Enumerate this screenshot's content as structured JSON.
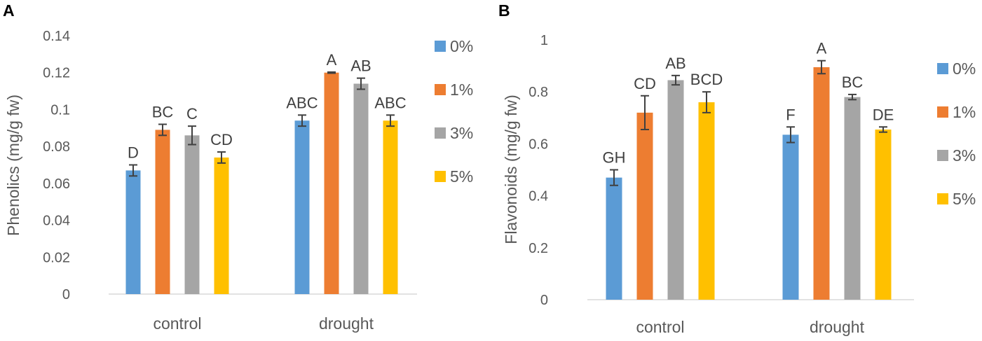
{
  "chart_data": [
    {
      "panel": "A",
      "type": "bar",
      "ylabel": "Phenolics (mg/g fw)",
      "xlabel": "",
      "categories": [
        "control",
        "drought"
      ],
      "ylim": [
        0,
        0.14
      ],
      "yticks": [
        "0",
        "0.02",
        "0.04",
        "0.06",
        "0.08",
        "0.1",
        "0.12",
        "0.14"
      ],
      "grid": false,
      "legend_position": "right",
      "series": [
        {
          "name": "0%",
          "color": "#5B9BD5",
          "values": [
            0.067,
            0.094
          ],
          "errors": [
            0.003,
            0.003
          ],
          "letters": [
            "D",
            "ABC"
          ]
        },
        {
          "name": "1%",
          "color": "#ED7D31",
          "values": [
            0.089,
            0.12
          ],
          "errors": [
            0.003,
            0.0003
          ],
          "letters": [
            "BC",
            "A"
          ]
        },
        {
          "name": "3%",
          "color": "#A5A5A5",
          "values": [
            0.086,
            0.114
          ],
          "errors": [
            0.005,
            0.003
          ],
          "letters": [
            "C",
            "AB"
          ]
        },
        {
          "name": "5%",
          "color": "#FFC000",
          "values": [
            0.074,
            0.094
          ],
          "errors": [
            0.003,
            0.003
          ],
          "letters": [
            "CD",
            "ABC"
          ]
        }
      ]
    },
    {
      "panel": "B",
      "type": "bar",
      "ylabel": "Flavonoids (mg/g fw)",
      "xlabel": "",
      "categories": [
        "control",
        "drought"
      ],
      "ylim": [
        0,
        1
      ],
      "yticks": [
        "0",
        "0.2",
        "0.4",
        "0.6",
        "0.8",
        "1"
      ],
      "grid": false,
      "legend_position": "right",
      "series": [
        {
          "name": "0%",
          "color": "#5B9BD5",
          "values": [
            0.47,
            0.635
          ],
          "errors": [
            0.03,
            0.03
          ],
          "letters": [
            "GH",
            "F"
          ]
        },
        {
          "name": "1%",
          "color": "#ED7D31",
          "values": [
            0.72,
            0.895
          ],
          "errors": [
            0.065,
            0.025
          ],
          "letters": [
            "CD",
            "A"
          ]
        },
        {
          "name": "3%",
          "color": "#A5A5A5",
          "values": [
            0.845,
            0.78
          ],
          "errors": [
            0.018,
            0.01
          ],
          "letters": [
            "AB",
            "BC"
          ]
        },
        {
          "name": "5%",
          "color": "#FFC000",
          "values": [
            0.76,
            0.655
          ],
          "errors": [
            0.04,
            0.01
          ],
          "letters": [
            "BCD",
            "DE"
          ]
        }
      ]
    }
  ]
}
